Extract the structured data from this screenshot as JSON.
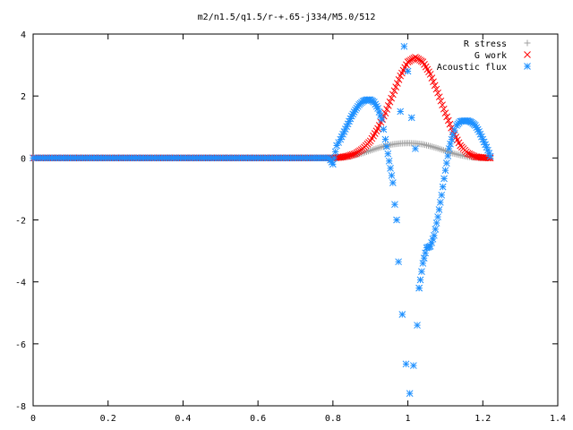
{
  "chart_data": {
    "type": "scatter",
    "title": "m2/n1.5/q1.5/r-+.65-j334/M5.0/512",
    "xlim": [
      0,
      1.4
    ],
    "ylim": [
      -8,
      4
    ],
    "x_ticks": [
      "0",
      "0.2",
      "0.4",
      "0.6",
      "0.8",
      "1",
      "1.2",
      "1.4"
    ],
    "y_ticks": [
      "4",
      "2",
      "0",
      "-2",
      "-4",
      "-6",
      "-8"
    ],
    "x_tick_values": [
      0,
      0.2,
      0.4,
      0.6,
      0.8,
      1.0,
      1.2,
      1.4
    ],
    "y_tick_values": [
      4,
      2,
      0,
      -2,
      -4,
      -6,
      -8
    ],
    "legend_position": "top-right",
    "grid": false,
    "series": [
      {
        "name": "R stress",
        "marker": "plus",
        "color": "#a0a0a0",
        "x": [
          0,
          0.05,
          0.1,
          0.2,
          0.3,
          0.4,
          0.5,
          0.6,
          0.7,
          0.8,
          0.82,
          0.84,
          0.86,
          0.88,
          0.9,
          0.92,
          0.94,
          0.96,
          0.98,
          1.0,
          1.02,
          1.04,
          1.06,
          1.08,
          1.1,
          1.12,
          1.14,
          1.16,
          1.18,
          1.2,
          1.22
        ],
        "y": [
          0,
          0,
          0,
          0,
          0,
          0,
          0,
          0,
          0,
          0,
          0.01,
          0.04,
          0.09,
          0.16,
          0.24,
          0.32,
          0.39,
          0.44,
          0.47,
          0.48,
          0.47,
          0.44,
          0.38,
          0.31,
          0.23,
          0.15,
          0.09,
          0.04,
          0.01,
          0,
          0
        ]
      },
      {
        "name": "G work",
        "marker": "x",
        "color": "#ff0000",
        "x": [
          0,
          0.1,
          0.2,
          0.3,
          0.4,
          0.5,
          0.6,
          0.7,
          0.8,
          0.82,
          0.84,
          0.86,
          0.88,
          0.9,
          0.92,
          0.94,
          0.96,
          0.98,
          1.0,
          1.02,
          1.04,
          1.06,
          1.08,
          1.1,
          1.12,
          1.14,
          1.16,
          1.18,
          1.2,
          1.22
        ],
        "y": [
          0,
          0,
          0,
          0,
          0,
          0,
          0,
          0,
          0,
          0.02,
          0.06,
          0.14,
          0.3,
          0.55,
          0.95,
          1.45,
          2.05,
          2.65,
          3.1,
          3.25,
          3.1,
          2.7,
          2.1,
          1.45,
          0.85,
          0.4,
          0.15,
          0.04,
          0.01,
          0
        ]
      },
      {
        "name": "Acoustic flux",
        "marker": "star",
        "color": "#1e90ff",
        "x": [
          0,
          0.05,
          0.1,
          0.15,
          0.2,
          0.25,
          0.3,
          0.35,
          0.4,
          0.45,
          0.5,
          0.55,
          0.6,
          0.65,
          0.7,
          0.75,
          0.79,
          0.8,
          0.81,
          0.82,
          0.83,
          0.84,
          0.85,
          0.86,
          0.87,
          0.88,
          0.89,
          0.9,
          0.91,
          0.92,
          0.93,
          0.94,
          0.95,
          0.96,
          0.965,
          0.97,
          0.975,
          0.98,
          0.985,
          0.99,
          0.995,
          1.0,
          1.005,
          1.01,
          1.015,
          1.02,
          1.025,
          1.03,
          1.04,
          1.05,
          1.06,
          1.07,
          1.08,
          1.09,
          1.1,
          1.11,
          1.12,
          1.13,
          1.14,
          1.15,
          1.16,
          1.17,
          1.18,
          1.19,
          1.2,
          1.21,
          1.22
        ],
        "y": [
          0,
          0,
          0,
          0,
          0,
          0,
          0,
          0,
          0,
          0,
          0,
          0,
          0,
          0,
          0,
          0,
          0,
          -0.2,
          0.4,
          0.6,
          0.85,
          1.1,
          1.35,
          1.55,
          1.72,
          1.83,
          1.88,
          1.88,
          1.8,
          1.6,
          1.25,
          0.6,
          -0.1,
          -0.8,
          -1.5,
          -2.0,
          -3.35,
          1.5,
          -5.05,
          3.6,
          -6.65,
          2.8,
          -7.6,
          1.3,
          -6.7,
          0.3,
          -5.4,
          -4.2,
          -3.4,
          -2.9,
          -2.85,
          -2.5,
          -1.9,
          -1.2,
          -0.4,
          0.3,
          0.75,
          1.05,
          1.18,
          1.2,
          1.2,
          1.15,
          1.05,
          0.85,
          0.6,
          0.35,
          0.05
        ]
      }
    ]
  }
}
